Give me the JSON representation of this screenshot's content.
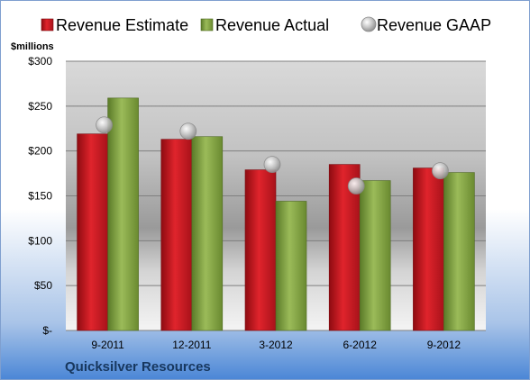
{
  "chart_data": {
    "type": "bar",
    "categories": [
      "9-2011",
      "12-2011",
      "3-2012",
      "6-2012",
      "9-2012"
    ],
    "series": [
      {
        "name": "Revenue Estimate",
        "kind": "bar",
        "color": "#c0141c",
        "values": [
          219,
          213,
          179,
          185,
          181
        ]
      },
      {
        "name": "Revenue Actual",
        "kind": "bar",
        "color": "#7a9a3a",
        "values": [
          259,
          216,
          144,
          167,
          176
        ]
      },
      {
        "name": "Revenue GAAP",
        "kind": "marker",
        "color": "#b8b8b8",
        "values": [
          229,
          222,
          185,
          161,
          178
        ]
      }
    ],
    "ylim": [
      0,
      300
    ],
    "yticks": [
      0,
      50,
      100,
      150,
      200,
      250,
      300
    ],
    "ytick_labels": [
      "$-",
      "$50",
      "$100",
      "$150",
      "$200",
      "$250",
      "$300"
    ],
    "ylabel": "$millions",
    "grid": true,
    "legend_position": "top"
  },
  "company_name": "Quicksilver Resources"
}
